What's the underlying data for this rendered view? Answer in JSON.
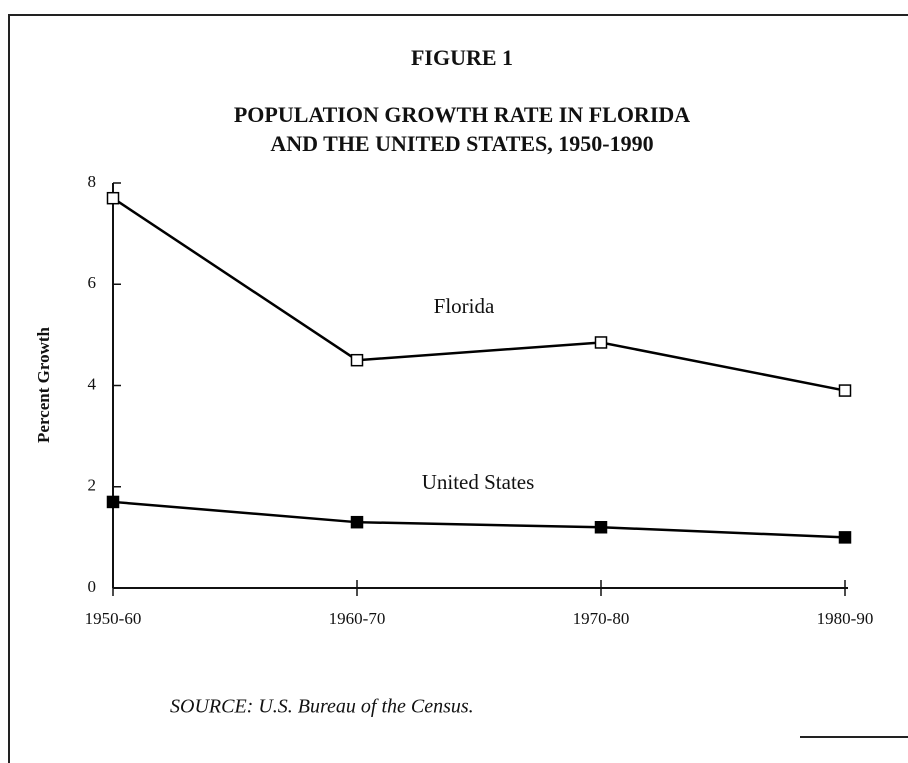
{
  "chart_data": {
    "type": "line",
    "title": "FIGURE 1",
    "subtitle": [
      "POPULATION GROWTH RATE IN FLORIDA",
      "AND THE UNITED STATES, 1950-1990"
    ],
    "y_label": "Percent  Growth",
    "source": "SOURCE:  U.S. Bureau of the Census.",
    "categories": [
      "1950-60",
      "1960-70",
      "1970-80",
      "1980-90"
    ],
    "series": [
      {
        "name": "Florida",
        "color": "#000000",
        "marker": "open-square",
        "values": [
          7.7,
          4.5,
          4.85,
          3.9
        ]
      },
      {
        "name": "United States",
        "color": "#000000",
        "marker": "filled-square",
        "values": [
          1.7,
          1.3,
          1.2,
          1.0
        ]
      }
    ],
    "ylim": [
      0,
      8
    ],
    "yticks": [
      0,
      2,
      4,
      6,
      8
    ],
    "grid": false
  }
}
